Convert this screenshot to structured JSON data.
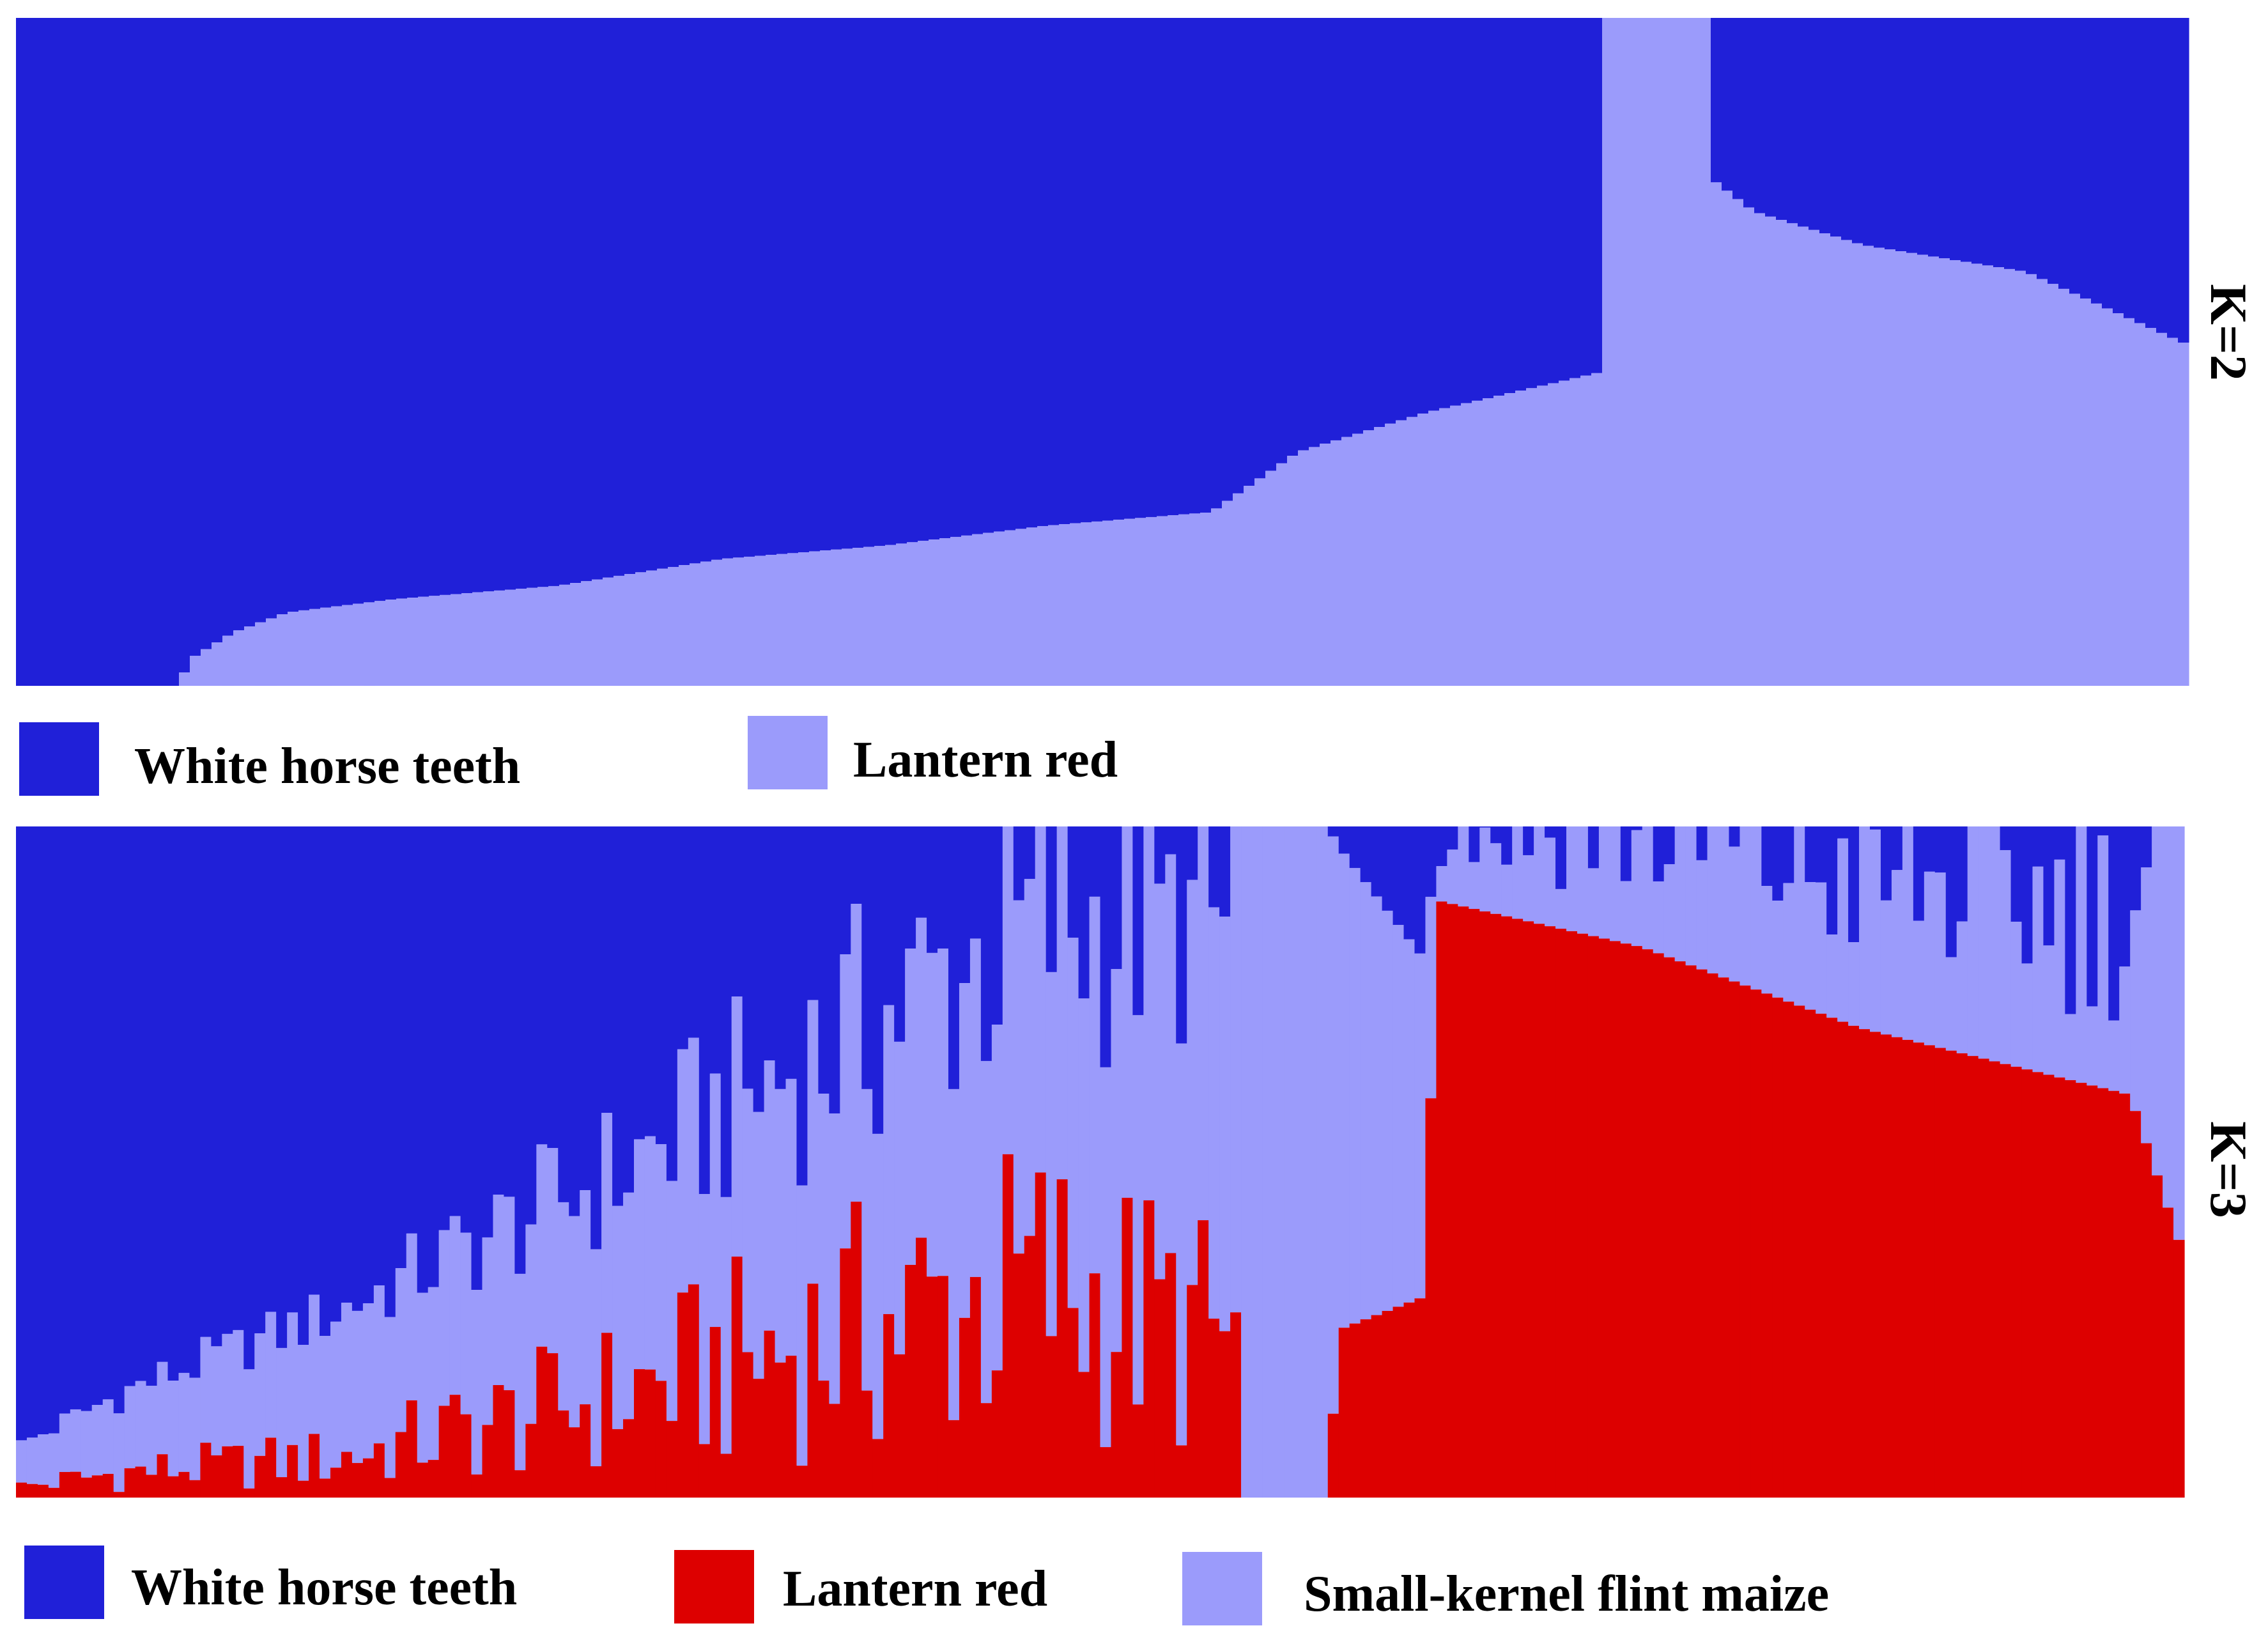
{
  "colors": {
    "white_horse_teeth": "#2020D8",
    "lantern_red_k2": "#9B9BFB",
    "lantern_red_k3": "#DD0000",
    "small_kernel_flint_maize": "#9B9BFB"
  },
  "chart_data": [
    {
      "type": "stacked-bar",
      "k_label": "K=2",
      "y_range": [
        0,
        1
      ],
      "grid": false,
      "legend_position": "below",
      "legend": [
        {
          "label": "White horse teeth",
          "color": "#2020D8"
        },
        {
          "label": "Lantern red",
          "color": "#9B9BFB"
        }
      ],
      "samples": 200,
      "series": [
        {
          "name": "Lantern red",
          "profile": [
            [
              0,
              0.0
            ],
            [
              15,
              0.0
            ],
            [
              16,
              0.04
            ],
            [
              20,
              0.08
            ],
            [
              25,
              0.11
            ],
            [
              35,
              0.13
            ],
            [
              50,
              0.15
            ],
            [
              65,
              0.19
            ],
            [
              80,
              0.21
            ],
            [
              95,
              0.24
            ],
            [
              110,
              0.26
            ],
            [
              118,
              0.35
            ],
            [
              130,
              0.41
            ],
            [
              146,
              0.47
            ],
            [
              146.01,
              1.0
            ],
            [
              155.99,
              1.0
            ],
            [
              156,
              0.76
            ],
            [
              160,
              0.71
            ],
            [
              170,
              0.66
            ],
            [
              185,
              0.62
            ],
            [
              200,
              0.51
            ]
          ]
        },
        {
          "name": "White horse teeth",
          "value": "remainder"
        }
      ]
    },
    {
      "type": "stacked-bar",
      "k_label": "K=3",
      "y_range": [
        0,
        1
      ],
      "grid": false,
      "legend_position": "below",
      "legend": [
        {
          "label": "White horse teeth",
          "color": "#2020D8"
        },
        {
          "label": "Lantern red",
          "color": "#DD0000"
        },
        {
          "label": "Small-kernel flint maize",
          "color": "#9B9BFB"
        }
      ],
      "samples": 200,
      "series": [
        {
          "name": "Lantern red",
          "profile": [
            [
              0,
              0.02
            ],
            [
              10,
              0.05
            ],
            [
              30,
              0.08
            ],
            [
              55,
              0.2
            ],
            [
              75,
              0.32
            ],
            [
              95,
              0.42
            ],
            [
              113,
              0.3
            ],
            [
              113.01,
              0.0
            ],
            [
              121,
              0.0
            ],
            [
              122,
              0.25
            ],
            [
              130,
              0.3
            ],
            [
              131,
              0.89
            ],
            [
              150,
              0.82
            ],
            [
              170,
              0.7
            ],
            [
              195,
              0.6
            ],
            [
              200,
              0.36
            ]
          ]
        },
        {
          "name": "Small-kernel flint maize",
          "profile": [
            [
              0,
              0.06
            ],
            [
              10,
              0.12
            ],
            [
              30,
              0.22
            ],
            [
              55,
              0.33
            ],
            [
              75,
              0.43
            ],
            [
              95,
              0.54
            ],
            [
              112,
              0.62
            ],
            [
              112.01,
              1.0
            ],
            [
              121,
              1.0
            ],
            [
              122,
              0.72
            ],
            [
              130,
              0.5
            ],
            [
              131,
              0.1
            ],
            [
              150,
              0.15
            ],
            [
              170,
              0.2
            ],
            [
              195,
              0.25
            ],
            [
              200,
              0.64
            ]
          ]
        },
        {
          "name": "White horse teeth",
          "value": "remainder"
        }
      ]
    }
  ],
  "legend_k2": {
    "white_horse_teeth": "White horse teeth",
    "lantern_red": "Lantern red"
  },
  "legend_k3": {
    "white_horse_teeth": "White horse teeth",
    "lantern_red": "Lantern red",
    "small_kernel_flint_maize": "Small-kernel flint maize"
  }
}
